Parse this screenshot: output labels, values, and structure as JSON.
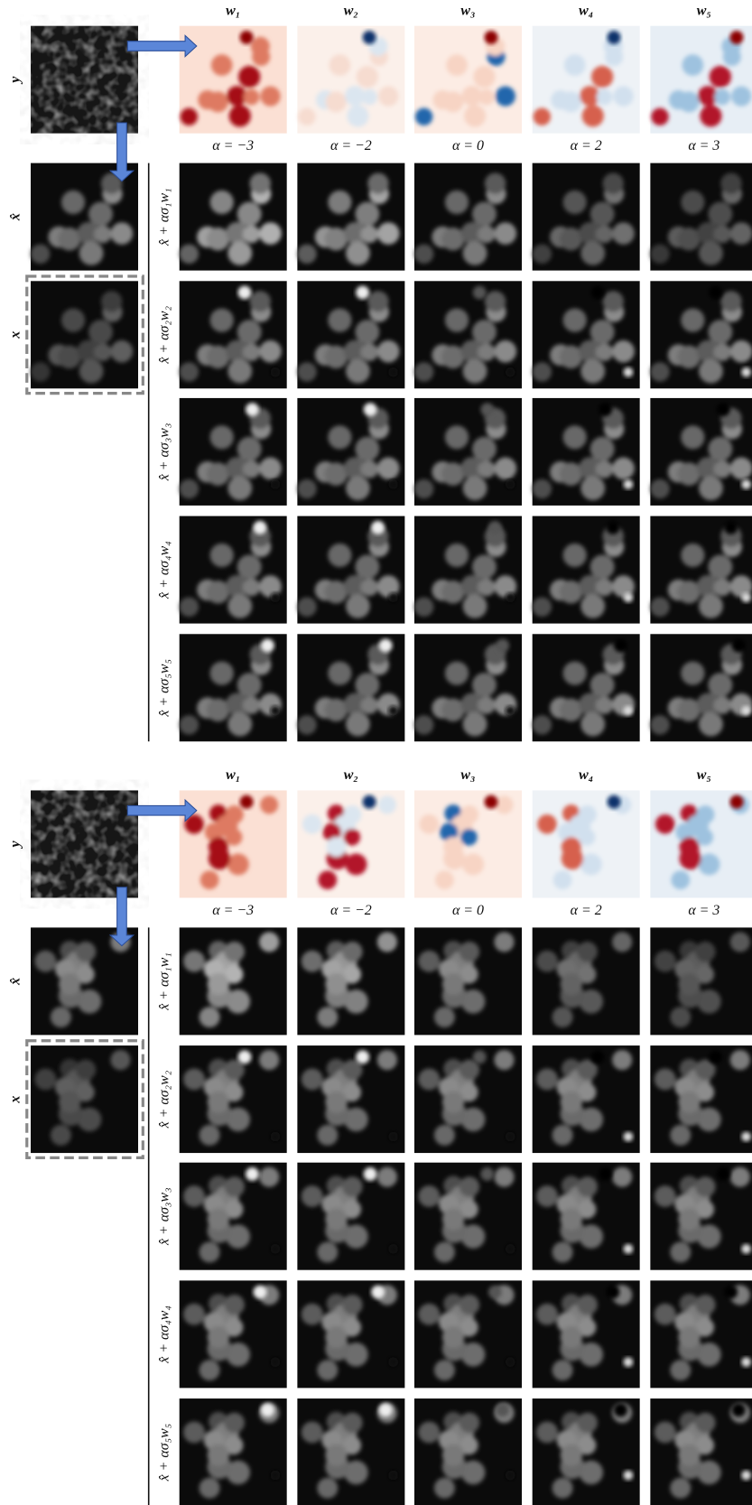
{
  "panels": [
    {
      "y_label": "y",
      "xhat_label": "x̂",
      "x_label": "x",
      "col_headers": [
        "w₁",
        "w₂",
        "w₃",
        "w₄",
        "w₅"
      ],
      "alpha_labels": [
        "α = −3",
        "α = −2",
        "α = 0",
        "α = 2",
        "α = 3"
      ],
      "row_labels": [
        "x̂ + ασ₁w₁",
        "x̂ + ασ₂w₂",
        "x̂ + ασ₃w₃",
        "x̂ + ασ₄w₄",
        "x̂ + ασ₅w₅"
      ]
    },
    {
      "y_label": "y",
      "xhat_label": "x̂",
      "x_label": "x",
      "col_headers": [
        "w₁",
        "w₂",
        "w₃",
        "w₄",
        "w₅"
      ],
      "alpha_labels": [
        "α = −3",
        "α = −2",
        "α = 0",
        "α = 2",
        "α = 3"
      ],
      "row_labels": [
        "x̂ + ασ₁w₁",
        "x̂ + ασ₂w₂",
        "x̂ + ασ₃w₃",
        "x̂ + ασ₄w₄",
        "x̂ + ασ₅w₅"
      ]
    }
  ]
}
